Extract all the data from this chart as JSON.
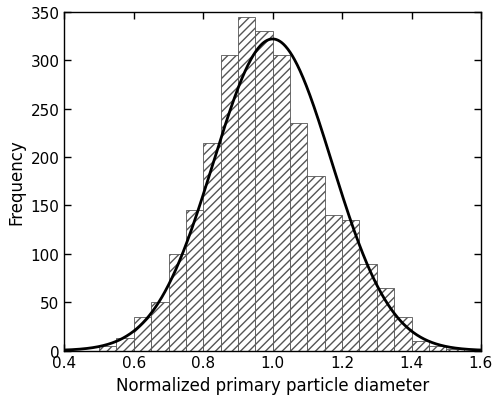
{
  "xlabel": "Normalized primary particle diameter",
  "ylabel": "Frequency",
  "xlim": [
    0.4,
    1.6
  ],
  "ylim": [
    0,
    350
  ],
  "xticks": [
    0.4,
    0.6,
    0.8,
    1.0,
    1.2,
    1.4,
    1.6
  ],
  "yticks": [
    0,
    50,
    100,
    150,
    200,
    250,
    300,
    350
  ],
  "bar_width": 0.05,
  "gaussian_mean": 1.0,
  "gaussian_std": 0.17,
  "bin_left_edges": [
    0.5,
    0.55,
    0.6,
    0.65,
    0.7,
    0.75,
    0.8,
    0.85,
    0.9,
    0.95,
    1.0,
    1.05,
    1.1,
    1.15,
    1.2,
    1.25,
    1.3,
    1.35,
    1.4,
    1.45,
    1.5
  ],
  "heights": [
    5,
    13,
    35,
    50,
    100,
    145,
    215,
    305,
    345,
    330,
    305,
    235,
    180,
    140,
    135,
    90,
    65,
    35,
    10,
    5,
    2
  ],
  "hatch_pattern": "////",
  "bar_facecolor": "#ffffff",
  "bar_edgecolor": "#555555",
  "line_color": "#000000",
  "line_width": 2.0,
  "background_color": "#ffffff",
  "xlabel_fontsize": 12,
  "ylabel_fontsize": 12,
  "tick_fontsize": 11,
  "figsize": [
    5.0,
    4.02
  ],
  "dpi": 100
}
